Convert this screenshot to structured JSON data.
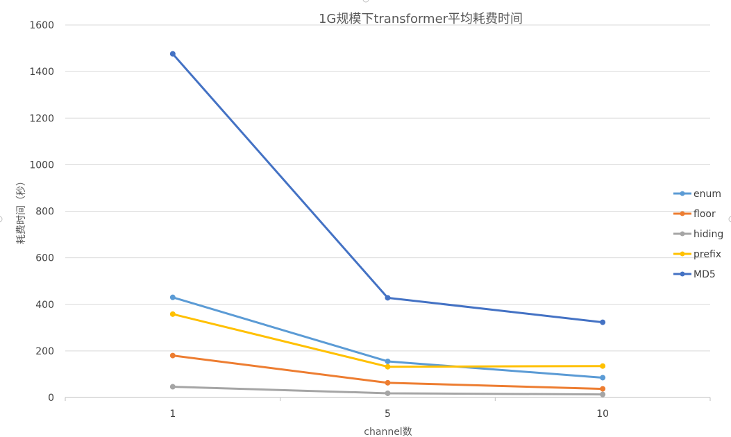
{
  "chart_data": {
    "type": "line",
    "title": "1G规模下transformer平均耗费时间",
    "xlabel": "channel数",
    "ylabel": "耗费时间（秒）",
    "categories": [
      "1",
      "5",
      "10"
    ],
    "ylim": [
      0,
      1600
    ],
    "yticks": [
      0,
      200,
      400,
      600,
      800,
      1000,
      1200,
      1400,
      1600
    ],
    "grid": true,
    "legend_position": "right",
    "series": [
      {
        "name": "enum",
        "color": "#5b9bd5",
        "values": [
          430,
          155,
          85
        ]
      },
      {
        "name": "floor",
        "color": "#ed7d31",
        "values": [
          180,
          63,
          37
        ]
      },
      {
        "name": "hiding",
        "color": "#a5a5a5",
        "values": [
          46,
          18,
          13
        ]
      },
      {
        "name": "prefix",
        "color": "#ffc000",
        "values": [
          358,
          132,
          135
        ]
      },
      {
        "name": "MD5",
        "color": "#4472c4",
        "values": [
          1476,
          428,
          323
        ]
      }
    ]
  }
}
